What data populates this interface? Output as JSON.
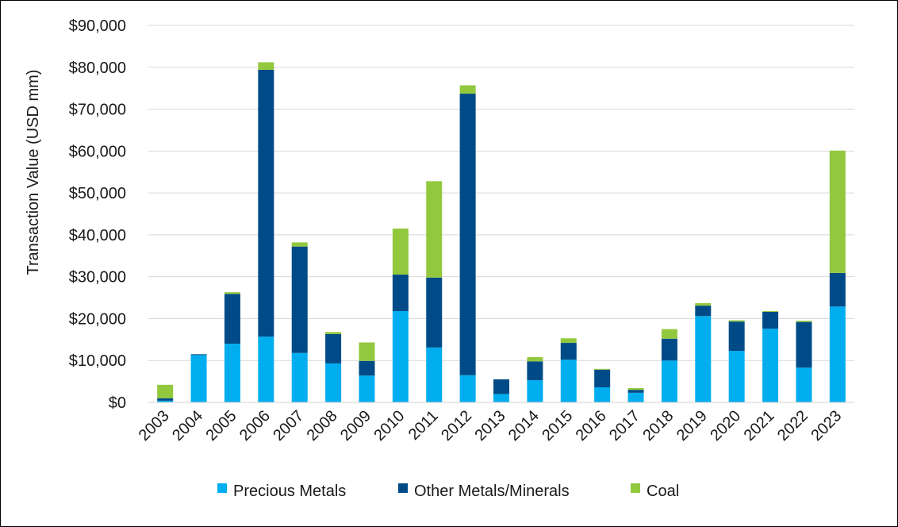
{
  "chart_data": {
    "type": "bar",
    "stacked": true,
    "title": "",
    "xlabel": "",
    "ylabel": "Transaction Value (USD mm)",
    "ylim": [
      0,
      90000
    ],
    "ytick_step": 10000,
    "ytick_labels": [
      "$0",
      "$10,000",
      "$20,000",
      "$30,000",
      "$40,000",
      "$50,000",
      "$60,000",
      "$70,000",
      "$80,000",
      "$90,000"
    ],
    "grid": "horizontal",
    "legend_position": "bottom",
    "categories": [
      "2003",
      "2004",
      "2005",
      "2006",
      "2007",
      "2008",
      "2009",
      "2010",
      "2011",
      "2012",
      "2013",
      "2014",
      "2015",
      "2016",
      "2017",
      "2018",
      "2019",
      "2020",
      "2021",
      "2022",
      "2023"
    ],
    "series": [
      {
        "name": "Precious Metals",
        "color": "#00aeef",
        "values": [
          400,
          11300,
          14000,
          15700,
          11800,
          9300,
          6400,
          21800,
          13100,
          6500,
          2000,
          5300,
          10200,
          3600,
          2300,
          10000,
          20600,
          12300,
          17600,
          8300,
          22900
        ]
      },
      {
        "name": "Other Metals/Minerals",
        "color": "#004b87",
        "values": [
          600,
          200,
          11900,
          63700,
          25400,
          7000,
          3500,
          8700,
          16700,
          67200,
          3500,
          4500,
          4000,
          4200,
          700,
          5200,
          2500,
          7000,
          4000,
          10900,
          8000
        ]
      },
      {
        "name": "Coal",
        "color": "#92c83e",
        "values": [
          3200,
          0,
          400,
          1800,
          1000,
          500,
          4400,
          11000,
          23000,
          2000,
          0,
          1000,
          1100,
          200,
          400,
          2300,
          600,
          300,
          200,
          300,
          29200
        ]
      }
    ]
  }
}
